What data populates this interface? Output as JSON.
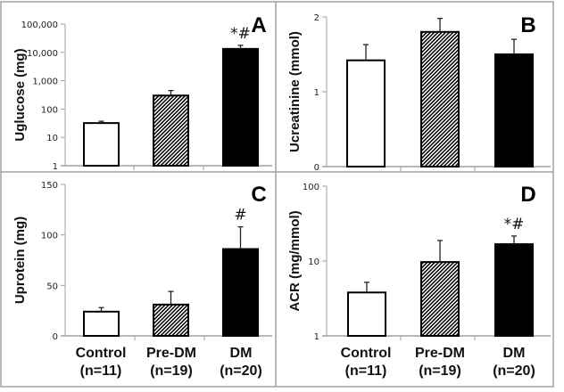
{
  "figure": {
    "categories": [
      {
        "name": "Control",
        "n": "(n=11)",
        "fill": "#ffffff"
      },
      {
        "name": "Pre-DM",
        "n": "(n=19)",
        "fill": "hatch"
      },
      {
        "name": "DM",
        "n": "(n=20)",
        "fill": "#000000"
      }
    ],
    "colors": {
      "frame": "#a0a0a0",
      "axis": "#a0a0a0",
      "bar_edge": "#000000",
      "hatch": "#000000"
    }
  },
  "chart_data": [
    {
      "type": "bar",
      "panel": "A",
      "title": "",
      "xlabel": "",
      "ylabel": "Uglucose (mg)",
      "yscale": "log",
      "ylim": [
        1,
        100000
      ],
      "yticks": [
        1,
        10,
        100,
        1000,
        10000,
        100000
      ],
      "ytick_labels": [
        "1",
        "10",
        "100",
        "1,000",
        "10,000",
        "100,000"
      ],
      "categories": [
        "Control (n=11)",
        "Pre-DM (n=19)",
        "DM (n=20)"
      ],
      "values": [
        32,
        300,
        13300
      ],
      "error_upper": [
        37,
        450,
        17800
      ],
      "annotations": [
        "",
        "",
        "*#"
      ]
    },
    {
      "type": "bar",
      "panel": "B",
      "title": "",
      "xlabel": "",
      "ylabel": "Ucreatinine (mmol)",
      "yscale": "linear",
      "ylim": [
        0,
        2
      ],
      "yticks": [
        0,
        1,
        2
      ],
      "ytick_labels": [
        "0",
        "1",
        "2"
      ],
      "categories": [
        "Control (n=11)",
        "Pre-DM (n=19)",
        "DM (n=20)"
      ],
      "values": [
        1.42,
        1.8,
        1.5
      ],
      "error_upper": [
        1.63,
        1.98,
        1.7
      ],
      "annotations": [
        "",
        "",
        ""
      ]
    },
    {
      "type": "bar",
      "panel": "C",
      "title": "",
      "xlabel": "",
      "ylabel": "Uprotein (mg)",
      "yscale": "linear",
      "ylim": [
        0,
        150
      ],
      "yticks": [
        0,
        50,
        100,
        150
      ],
      "ytick_labels": [
        "0",
        "50",
        "100",
        "150"
      ],
      "categories": [
        "Control (n=11)",
        "Pre-DM (n=19)",
        "DM (n=20)"
      ],
      "values": [
        24,
        31,
        86
      ],
      "error_upper": [
        28,
        44,
        108
      ],
      "annotations": [
        "",
        "",
        "#"
      ]
    },
    {
      "type": "bar",
      "panel": "D",
      "title": "",
      "xlabel": "",
      "ylabel": "ACR (mg/mmol)",
      "yscale": "log",
      "ylim": [
        1,
        100
      ],
      "yticks": [
        1,
        10,
        100
      ],
      "ytick_labels": [
        "1",
        "10",
        "100"
      ],
      "categories": [
        "Control (n=11)",
        "Pre-DM (n=19)",
        "DM (n=20)"
      ],
      "values": [
        3.8,
        9.7,
        16.8
      ],
      "error_upper": [
        5.2,
        18.8,
        21.6
      ],
      "annotations": [
        "",
        "",
        "*#"
      ]
    }
  ]
}
